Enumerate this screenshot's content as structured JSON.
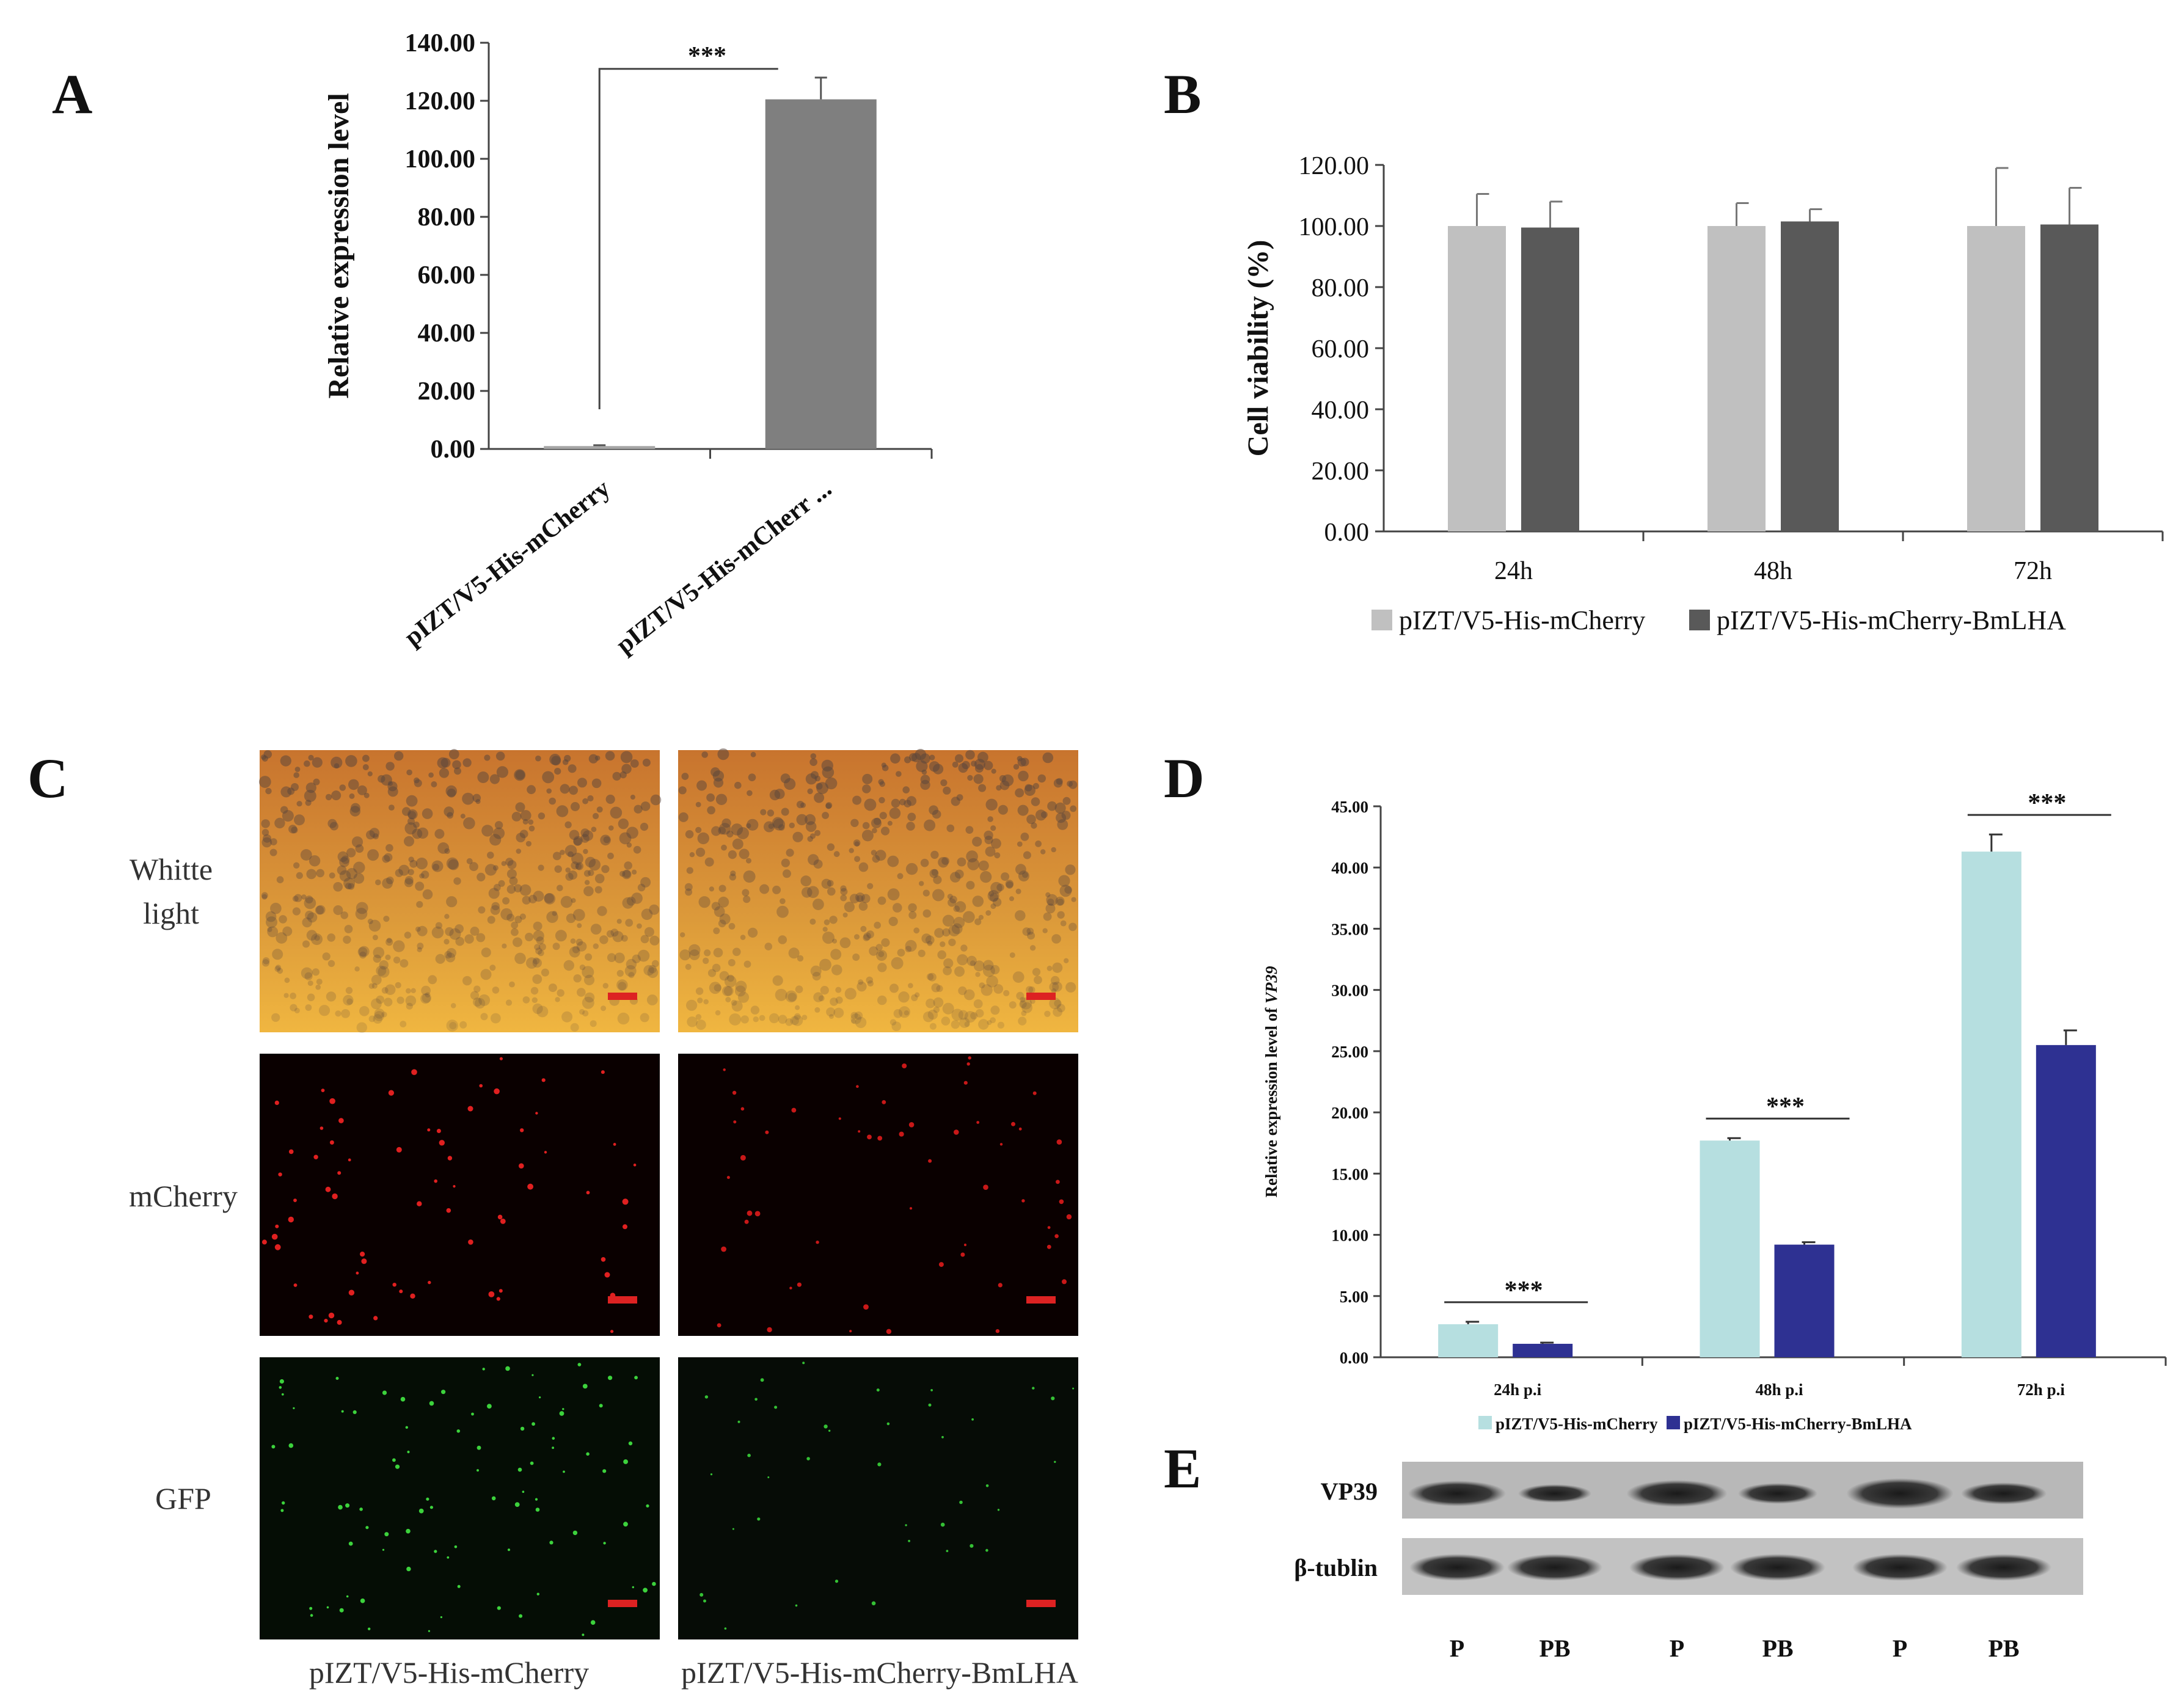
{
  "panels": {
    "A": "A",
    "B": "B",
    "C": "C",
    "D": "D",
    "E": "E"
  },
  "chart_data": [
    {
      "panel": "A",
      "type": "bar",
      "ylabel": "Relative  expression level",
      "ylim": [
        0,
        140
      ],
      "yticks": [
        "0.00",
        "20.00",
        "40.00",
        "60.00",
        "80.00",
        "100.00",
        "120.00",
        "140.00"
      ],
      "categories": [
        "pIZT/V5-His-mCherry",
        "pIZT/V5-His-mCherr ..."
      ],
      "values": [
        1,
        120.5
      ],
      "errors": [
        0.3,
        7.5
      ],
      "significance": "***",
      "colors": [
        "#a6a6a6",
        "#7f7f7f"
      ]
    },
    {
      "panel": "B",
      "type": "bar",
      "ylabel": "Cell viability (%)",
      "ylim": [
        0,
        120
      ],
      "yticks": [
        "0.00",
        "20.00",
        "40.00",
        "60.00",
        "80.00",
        "100.00",
        "120.00"
      ],
      "categories": [
        "24h",
        "48h",
        "72h"
      ],
      "series": [
        {
          "name": "pIZT/V5-His-mCherry",
          "values": [
            100,
            100,
            100
          ],
          "errors": [
            10.5,
            7.5,
            19
          ],
          "color": "#c0c0c0"
        },
        {
          "name": "pIZT/V5-His-mCherry-BmLHA",
          "values": [
            99.5,
            101.5,
            100.5
          ],
          "errors": [
            8.5,
            4,
            12
          ],
          "color": "#595959"
        }
      ],
      "legend_position": "bottom"
    },
    {
      "panel": "D",
      "type": "bar",
      "ylabel_prefix": "Relative expression level of ",
      "ylabel_gene": "VP39",
      "ylim": [
        0,
        45
      ],
      "yticks": [
        "0.00",
        "5.00",
        "10.00",
        "15.00",
        "20.00",
        "25.00",
        "30.00",
        "35.00",
        "40.00",
        "45.00"
      ],
      "categories": [
        "24h p.i",
        "48h p.i",
        "72h p.i"
      ],
      "series": [
        {
          "name": "pIZT/V5-His-mCherry",
          "values": [
            2.7,
            17.7,
            41.3
          ],
          "errors": [
            0.2,
            0.2,
            1.4
          ],
          "color": "#b6dfe0"
        },
        {
          "name": "pIZT/V5-His-mCherry-BmLHA",
          "values": [
            1.1,
            9.2,
            25.5
          ],
          "errors": [
            0.1,
            0.2,
            1.2
          ],
          "color": "#2e3192"
        }
      ],
      "significance": [
        "***",
        "***",
        "***"
      ],
      "legend_position": "bottom"
    }
  ],
  "panel_c": {
    "row_labels": [
      "Whitte\nlight",
      "mCherry",
      "GFP"
    ],
    "col_labels": [
      "pIZT/V5-His-mCherry",
      "pIZT/V5-His-mCherry-BmLHA"
    ]
  },
  "panel_e": {
    "row_labels": [
      "VP39",
      "β-tublin"
    ],
    "lane_labels": [
      "P",
      "PB",
      "P",
      "PB",
      "P",
      "PB"
    ]
  }
}
